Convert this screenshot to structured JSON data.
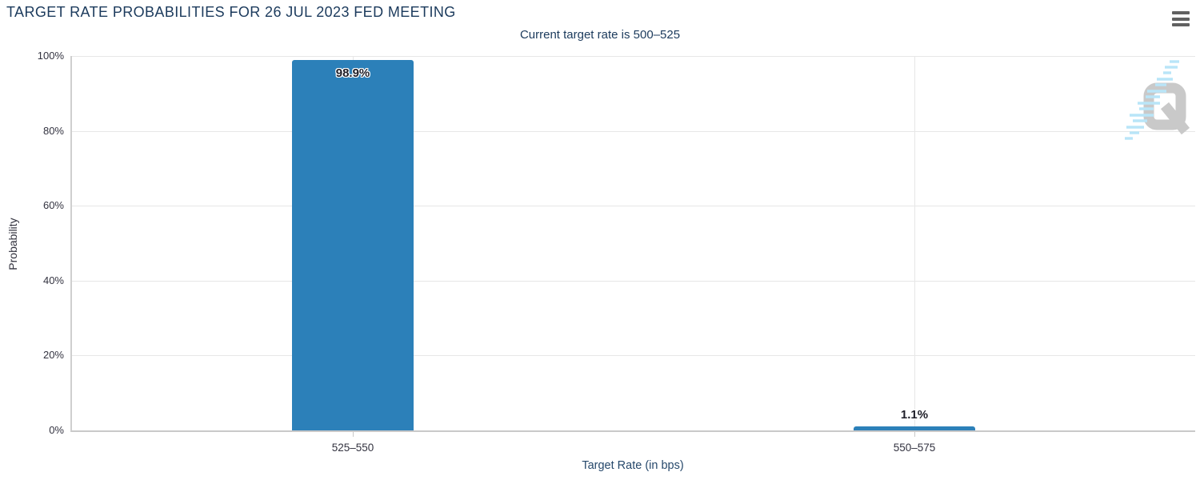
{
  "header": {
    "title": "TARGET RATE PROBABILITIES FOR 26 JUL 2023 FED MEETING",
    "menu_tooltip": "chart context menu"
  },
  "chart_data": {
    "type": "bar",
    "title": "TARGET RATE PROBABILITIES FOR 26 JUL 2023 FED MEETING",
    "subtitle": "Current target rate is 500–525",
    "categories": [
      "525–550",
      "550–575"
    ],
    "values": [
      98.9,
      1.1
    ],
    "value_labels": [
      "98.9%",
      "1.1%"
    ],
    "xlabel": "Target Rate (in bps)",
    "ylabel": "Probability",
    "ylim": [
      0,
      100
    ],
    "yticks": [
      "100%",
      "80%",
      "60%",
      "40%",
      "20%",
      "0%"
    ],
    "grid": true,
    "legend": "none",
    "bar_color": "#2c80b9"
  },
  "watermark": {
    "letter": "Q",
    "q_color": "#c9c9c9",
    "dash_color": "#b9e5f8"
  },
  "colors": {
    "title": "#1b3a5c",
    "tick_label": "#333340",
    "grid": "#e7e7e7",
    "axis_line": "#c9c9c9",
    "menu_icon": "#616161"
  }
}
